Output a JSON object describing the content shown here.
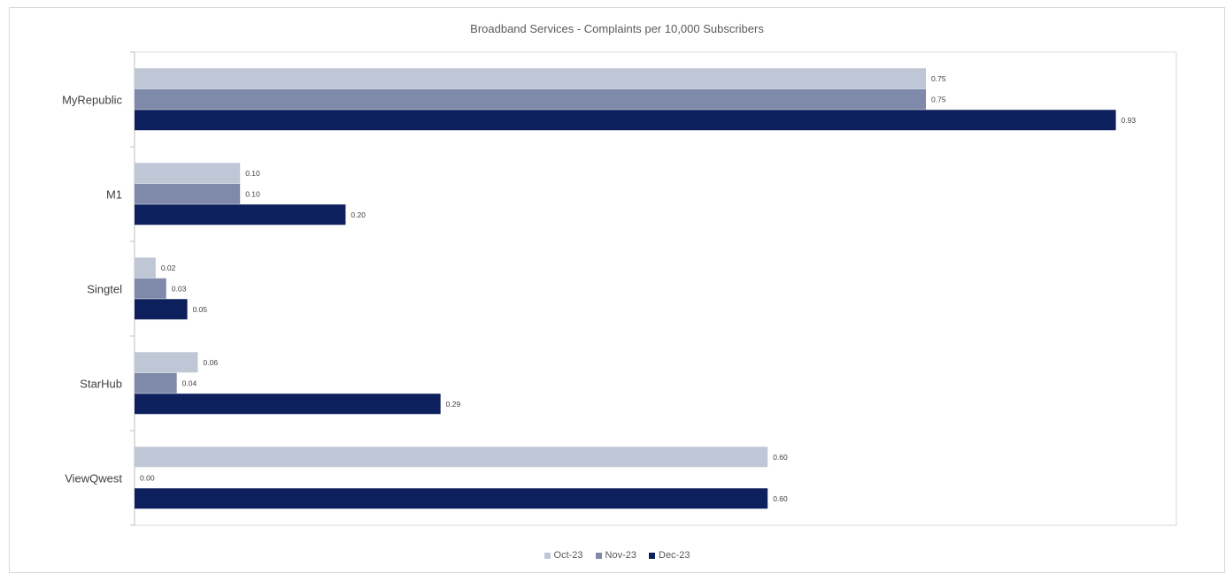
{
  "chart_data": {
    "type": "bar",
    "orientation": "horizontal",
    "title": "Broadband Services  - Complaints per 10,000 Subscribers",
    "categories": [
      "MyRepublic",
      "M1",
      "Singtel",
      "StarHub",
      "ViewQwest"
    ],
    "series": [
      {
        "name": "Oct-23",
        "color": "#bfc6d6",
        "values": [
          0.75,
          0.1,
          0.02,
          0.06,
          0.6
        ],
        "labels": [
          "0.75",
          "0.10",
          "0.02",
          "0.06",
          "0.60"
        ]
      },
      {
        "name": "Nov-23",
        "color": "#7f8aaa",
        "values": [
          0.75,
          0.1,
          0.03,
          0.04,
          0.0
        ],
        "labels": [
          "0.75",
          "0.10",
          "0.03",
          "0.04",
          "0.00"
        ]
      },
      {
        "name": "Dec-23",
        "color": "#0d1f5c",
        "values": [
          0.93,
          0.2,
          0.05,
          0.29,
          0.6
        ],
        "labels": [
          "0.93",
          "0.20",
          "0.05",
          "0.29",
          "0.60"
        ]
      }
    ],
    "xlim": [
      0,
      1.0
    ],
    "grid": false,
    "legend_position": "bottom"
  }
}
